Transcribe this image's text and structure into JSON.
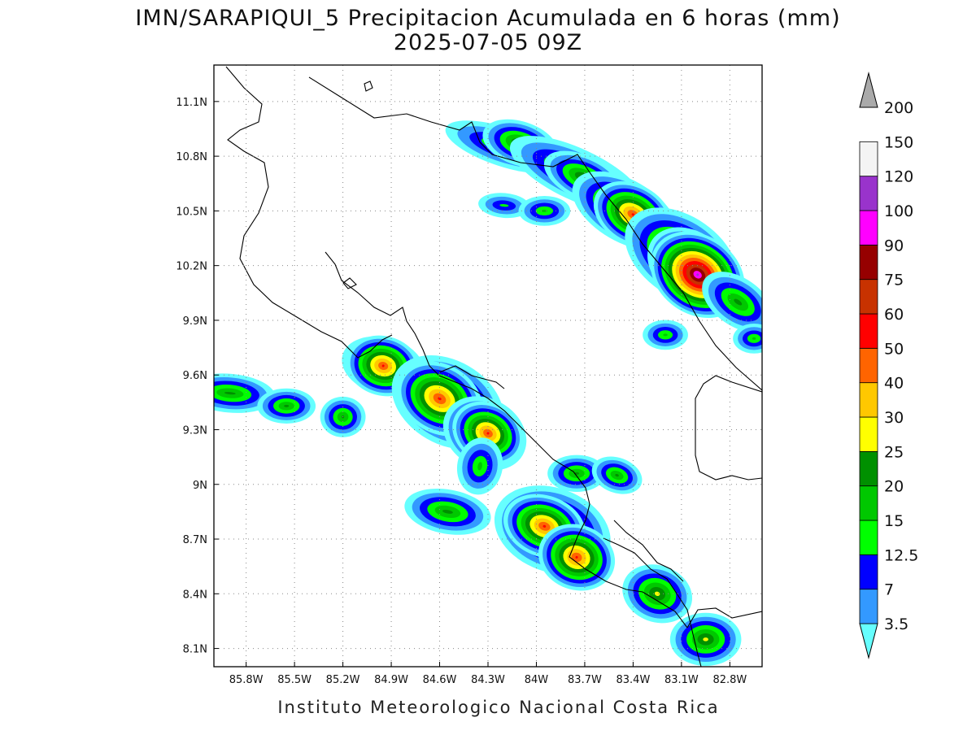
{
  "header": {
    "title": "IMN/SARAPIQUI_5 Precipitacion Acumulada en 6 horas (mm)",
    "subtitle": "2025-07-05 09Z"
  },
  "footer": {
    "credit": "Instituto Meteorologico Nacional Costa Rica"
  },
  "map": {
    "lon_range": [
      -86.0,
      -82.6
    ],
    "lat_range": [
      8.0,
      11.3
    ],
    "lon_ticks": [
      {
        "value": -85.8,
        "label": "85.8W"
      },
      {
        "value": -85.5,
        "label": "85.5W"
      },
      {
        "value": -85.2,
        "label": "85.2W"
      },
      {
        "value": -84.9,
        "label": "84.9W"
      },
      {
        "value": -84.6,
        "label": "84.6W"
      },
      {
        "value": -84.3,
        "label": "84.3W"
      },
      {
        "value": -84.0,
        "label": "84W"
      },
      {
        "value": -83.7,
        "label": "83.7W"
      },
      {
        "value": -83.4,
        "label": "83.4W"
      },
      {
        "value": -83.1,
        "label": "83.1W"
      },
      {
        "value": -82.8,
        "label": "82.8W"
      }
    ],
    "lat_ticks": [
      {
        "value": 11.1,
        "label": "11.1N"
      },
      {
        "value": 10.8,
        "label": "10.8N"
      },
      {
        "value": 10.5,
        "label": "10.5N"
      },
      {
        "value": 10.2,
        "label": "10.2N"
      },
      {
        "value": 9.9,
        "label": "9.9N"
      },
      {
        "value": 9.6,
        "label": "9.6N"
      },
      {
        "value": 9.3,
        "label": "9.3N"
      },
      {
        "value": 9.0,
        "label": "9N"
      },
      {
        "value": 8.7,
        "label": "8.7N"
      },
      {
        "value": 8.4,
        "label": "8.4N"
      },
      {
        "value": 8.1,
        "label": "8.1N"
      }
    ],
    "grid": "dotted"
  },
  "legend": {
    "levels": [
      {
        "label": "3.5",
        "color": "#66ffff"
      },
      {
        "label": "7",
        "color": "#3399ff"
      },
      {
        "label": "12.5",
        "color": "#0000ff"
      },
      {
        "label": "15",
        "color": "#00ff00"
      },
      {
        "label": "20",
        "color": "#00c800"
      },
      {
        "label": "25",
        "color": "#009000"
      },
      {
        "label": "30",
        "color": "#ffff00"
      },
      {
        "label": "40",
        "color": "#ffc800"
      },
      {
        "label": "50",
        "color": "#ff6400"
      },
      {
        "label": "60",
        "color": "#ff0000"
      },
      {
        "label": "75",
        "color": "#c83200"
      },
      {
        "label": "90",
        "color": "#960000"
      },
      {
        "label": "100",
        "color": "#ff00ff"
      },
      {
        "label": "120",
        "color": "#9933cc"
      },
      {
        "label": "150",
        "color": "#f4f4f4"
      },
      {
        "label": "200",
        "color": "#aaaaaa"
      }
    ]
  },
  "precip_cells": [
    {
      "lon": -84.2,
      "lat": 10.85,
      "rx": 0.3,
      "ry": 0.05,
      "rot": 18,
      "level": 4
    },
    {
      "lon": -84.1,
      "lat": 10.87,
      "rx": 0.12,
      "ry": 0.035,
      "rot": 18,
      "level": 6
    },
    {
      "lon": -83.75,
      "lat": 10.7,
      "rx": 0.35,
      "ry": 0.07,
      "rot": 25,
      "level": 5
    },
    {
      "lon": -83.7,
      "lat": 10.68,
      "rx": 0.15,
      "ry": 0.035,
      "rot": 25,
      "level": 6
    },
    {
      "lon": -83.45,
      "lat": 10.5,
      "rx": 0.22,
      "ry": 0.07,
      "rot": 30,
      "level": 7
    },
    {
      "lon": -83.4,
      "lat": 10.48,
      "rx": 0.08,
      "ry": 0.035,
      "rot": 30,
      "level": 9
    },
    {
      "lon": -83.1,
      "lat": 10.25,
      "rx": 0.25,
      "ry": 0.12,
      "rot": 35,
      "level": 7
    },
    {
      "lon": -83.05,
      "lat": 10.2,
      "rx": 0.1,
      "ry": 0.06,
      "rot": 35,
      "level": 9
    },
    {
      "lon": -83.0,
      "lat": 10.15,
      "rx": 0.05,
      "ry": 0.03,
      "rot": 35,
      "level": 13
    },
    {
      "lon": -82.75,
      "lat": 10.0,
      "rx": 0.15,
      "ry": 0.06,
      "rot": 35,
      "level": 5
    },
    {
      "lon": -84.2,
      "lat": 10.53,
      "rx": 0.1,
      "ry": 0.025,
      "rot": 5,
      "level": 3
    },
    {
      "lon": -83.95,
      "lat": 10.5,
      "rx": 0.08,
      "ry": 0.025,
      "rot": 0,
      "level": 4
    },
    {
      "lon": -84.95,
      "lat": 9.65,
      "rx": 0.14,
      "ry": 0.07,
      "rot": 15,
      "level": 6
    },
    {
      "lon": -84.95,
      "lat": 9.65,
      "rx": 0.05,
      "ry": 0.035,
      "rot": 15,
      "level": 9
    },
    {
      "lon": -84.55,
      "lat": 9.45,
      "rx": 0.23,
      "ry": 0.13,
      "rot": 30,
      "level": 7
    },
    {
      "lon": -84.6,
      "lat": 9.47,
      "rx": 0.1,
      "ry": 0.06,
      "rot": 30,
      "level": 9
    },
    {
      "lon": -84.32,
      "lat": 9.28,
      "rx": 0.13,
      "ry": 0.09,
      "rot": 30,
      "level": 7
    },
    {
      "lon": -84.3,
      "lat": 9.28,
      "rx": 0.05,
      "ry": 0.035,
      "rot": 30,
      "level": 9
    },
    {
      "lon": -84.35,
      "lat": 9.1,
      "rx": 0.06,
      "ry": 0.1,
      "rot": 10,
      "level": 4
    },
    {
      "lon": -85.9,
      "lat": 9.5,
      "rx": 0.18,
      "ry": 0.035,
      "rot": 5,
      "level": 5
    },
    {
      "lon": -85.55,
      "lat": 9.43,
      "rx": 0.08,
      "ry": 0.025,
      "rot": 0,
      "level": 5
    },
    {
      "lon": -85.2,
      "lat": 9.37,
      "rx": 0.04,
      "ry": 0.04,
      "rot": 0,
      "level": 5
    },
    {
      "lon": -84.55,
      "lat": 8.85,
      "rx": 0.17,
      "ry": 0.05,
      "rot": 10,
      "level": 5
    },
    {
      "lon": -83.9,
      "lat": 8.75,
      "rx": 0.23,
      "ry": 0.13,
      "rot": 20,
      "level": 7
    },
    {
      "lon": -83.95,
      "lat": 8.77,
      "rx": 0.08,
      "ry": 0.04,
      "rot": 20,
      "level": 9
    },
    {
      "lon": -83.75,
      "lat": 8.6,
      "rx": 0.06,
      "ry": 0.05,
      "rot": 20,
      "level": 9
    },
    {
      "lon": -83.75,
      "lat": 9.06,
      "rx": 0.08,
      "ry": 0.03,
      "rot": 0,
      "level": 5
    },
    {
      "lon": -83.5,
      "lat": 9.05,
      "rx": 0.06,
      "ry": 0.025,
      "rot": 20,
      "level": 5
    },
    {
      "lon": -83.25,
      "lat": 8.4,
      "rx": 0.1,
      "ry": 0.07,
      "rot": 20,
      "level": 6
    },
    {
      "lon": -82.95,
      "lat": 8.15,
      "rx": 0.1,
      "ry": 0.06,
      "rot": 0,
      "level": 6
    },
    {
      "lon": -83.2,
      "lat": 9.82,
      "rx": 0.06,
      "ry": 0.025,
      "rot": 0,
      "level": 4
    },
    {
      "lon": -82.65,
      "lat": 9.8,
      "rx": 0.05,
      "ry": 0.025,
      "rot": 0,
      "level": 4
    }
  ]
}
